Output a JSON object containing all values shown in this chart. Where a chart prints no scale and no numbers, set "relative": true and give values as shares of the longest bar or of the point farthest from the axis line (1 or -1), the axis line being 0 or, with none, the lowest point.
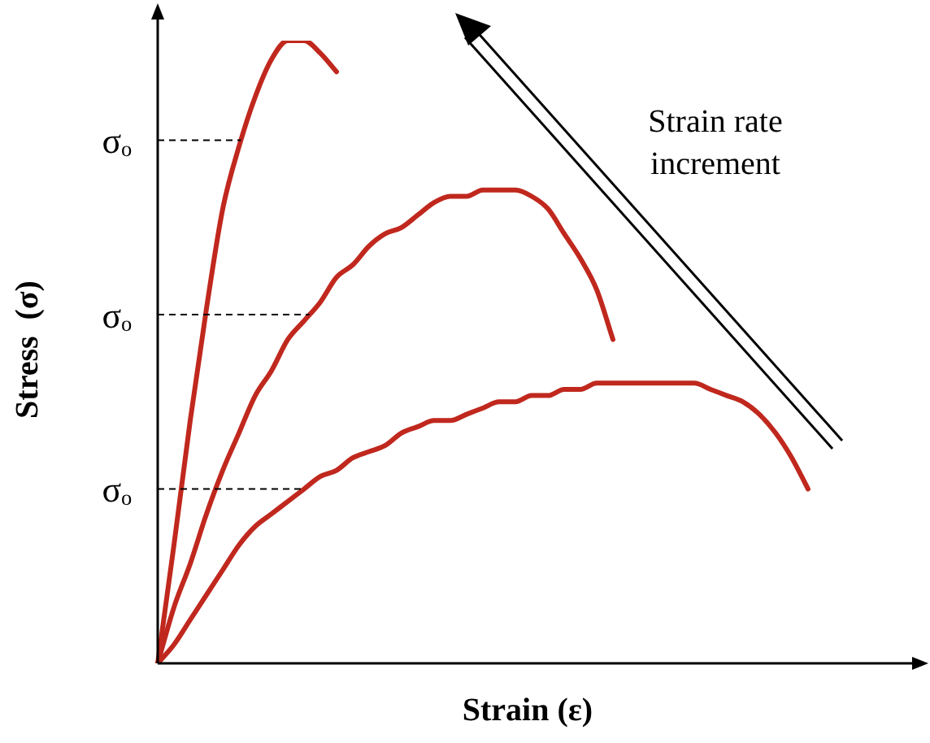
{
  "chart_data": {
    "type": "line",
    "relative": true,
    "xlabel": "Strain (ε)",
    "ylabel": "Stress  (σ)",
    "categories": [
      null,
      null,
      null,
      null,
      null,
      null,
      null,
      null,
      null,
      null,
      null,
      null,
      null,
      null,
      null,
      null,
      null,
      null,
      null,
      null,
      null,
      null,
      null,
      null,
      null,
      null,
      null,
      null,
      null,
      null,
      null,
      null,
      null,
      null,
      null,
      null,
      null,
      null,
      null,
      null,
      null,
      null,
      null,
      null,
      null,
      null,
      null
    ],
    "series": [
      {
        "color": "#c0281e",
        "values": [
          0,
          0.19,
          0.39,
          0.57,
          0.73,
          0.83,
          0.91,
          0.97,
          1.0,
          1.0,
          0.98,
          0.95,
          null,
          null,
          null,
          null,
          null,
          null,
          null,
          null,
          null,
          null,
          null,
          null,
          null,
          null,
          null,
          null,
          null,
          null,
          null,
          null,
          null,
          null,
          null,
          null,
          null,
          null,
          null,
          null,
          null,
          null,
          null,
          null,
          null,
          null,
          null
        ]
      },
      {
        "color": "#c0281e",
        "values": [
          0,
          0.09,
          0.16,
          0.24,
          0.31,
          0.37,
          0.43,
          0.47,
          0.52,
          0.55,
          0.58,
          0.62,
          0.64,
          0.67,
          0.69,
          0.7,
          0.72,
          0.74,
          0.75,
          0.75,
          0.76,
          0.76,
          0.76,
          0.75,
          0.73,
          0.69,
          0.65,
          0.6,
          0.52,
          null,
          null,
          null,
          null,
          null,
          null,
          null,
          null,
          null,
          null,
          null,
          null,
          null,
          null,
          null,
          null,
          null,
          null
        ]
      },
      {
        "color": "#c0281e",
        "values": [
          0,
          0.03,
          0.07,
          0.11,
          0.15,
          0.19,
          0.22,
          0.24,
          0.26,
          0.28,
          0.3,
          0.31,
          0.33,
          0.34,
          0.35,
          0.37,
          0.38,
          0.39,
          0.39,
          0.4,
          0.41,
          0.42,
          0.42,
          0.43,
          0.43,
          0.44,
          0.44,
          0.45,
          0.45,
          0.45,
          0.45,
          0.45,
          0.45,
          0.45,
          0.44,
          0.43,
          0.42,
          0.4,
          0.37,
          0.33,
          0.28,
          null,
          null,
          null,
          null,
          null,
          null
        ]
      }
    ],
    "ref_lines": [
      {
        "axis": "y",
        "value": 0.84,
        "label": "σₒ",
        "line_style": "dashed"
      },
      {
        "axis": "y",
        "value": 0.56,
        "label": "σₒ",
        "line_style": "dashed"
      },
      {
        "axis": "y",
        "value": 0.28,
        "label": "σₒ",
        "line_style": "dashed"
      }
    ],
    "marker": "none",
    "line_style": "solid",
    "annotations": [
      "Strain rate increment"
    ]
  }
}
